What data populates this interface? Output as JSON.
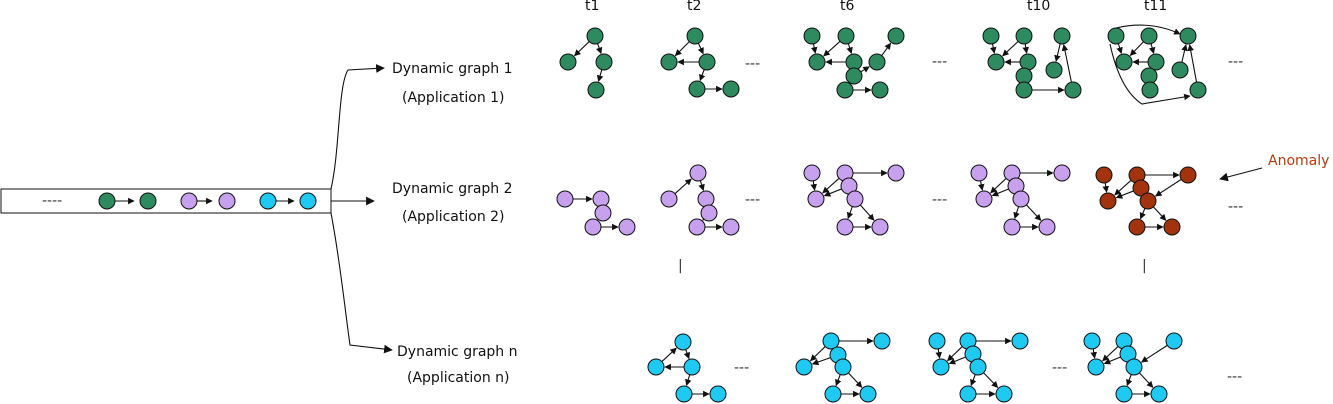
{
  "colors": {
    "green": "#2e8b5f",
    "purple": "#c7a0ee",
    "cyan": "#1ec9f2",
    "anomaly": "#a3330d",
    "anomaly_text": "#b23c12"
  },
  "stream": {
    "ellipsis": "----"
  },
  "time_labels": [
    "t1",
    "t2",
    "t6",
    "t10",
    "t11"
  ],
  "rows": [
    {
      "title": "Dynamic graph 1",
      "subtitle": "(Application 1)"
    },
    {
      "title": "Dynamic graph 2",
      "subtitle": "(Application 2)"
    },
    {
      "title": "Dynamic graph n",
      "subtitle": "(Application n)"
    }
  ],
  "ellipsis_h": "---",
  "ellipsis_v": "|",
  "anomaly_label": "Anomaly"
}
